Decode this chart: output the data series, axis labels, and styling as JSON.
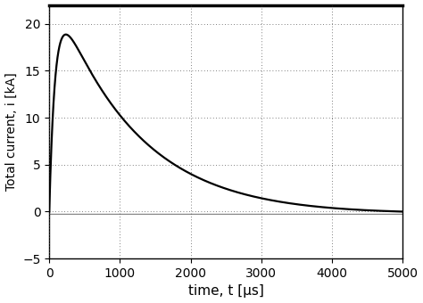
{
  "title": "",
  "xlabel": "time, t [μs]",
  "ylabel": "Total current, i [kA]",
  "xlim": [
    0,
    5000
  ],
  "ylim": [
    -5,
    22
  ],
  "yticks": [
    -5,
    0,
    5,
    10,
    15,
    20
  ],
  "xticks": [
    0,
    1000,
    2000,
    3000,
    4000,
    5000
  ],
  "line_color": "#000000",
  "flat_line_color": "#888888",
  "background_color": "#ffffff",
  "grid_color": "#555555",
  "flat_value": -0.28,
  "xlabel_fontsize": 11,
  "ylabel_fontsize": 10,
  "tick_fontsize": 10,
  "a1": 0.00085,
  "a2": 0.012,
  "peak_scale": 19.0,
  "undershoot_amp": -1.5,
  "undershoot_a": 0.00065,
  "undershoot_b": 0.00045
}
